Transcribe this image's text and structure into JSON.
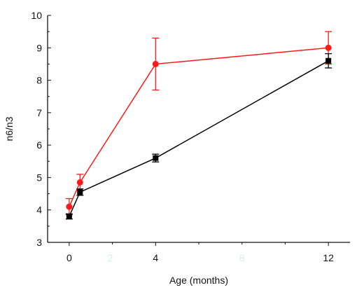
{
  "chart_data": {
    "type": "line",
    "xlabel": "Age (months)",
    "ylabel": "n6/n3",
    "x_ticks": [
      "0",
      "4",
      "12"
    ],
    "x_ticks_faint": [
      "2",
      "8"
    ],
    "y_ticks": [
      "3",
      "4",
      "5",
      "6",
      "7",
      "8",
      "9",
      "10"
    ],
    "xlim": [
      -1,
      13
    ],
    "ylim": [
      3,
      10
    ],
    "grid": false,
    "legend": "none",
    "series": [
      {
        "color": "#ff1a1a",
        "marker": "circle",
        "points": [
          {
            "x": 0,
            "y": 4.1,
            "err": 0.25
          },
          {
            "x": 0.5,
            "y": 4.85,
            "err": 0.25
          },
          {
            "x": 4,
            "y": 8.5,
            "err": 0.8
          },
          {
            "x": 12,
            "y": 9.0,
            "err": 0.5
          }
        ]
      },
      {
        "color": "#000000",
        "marker": "square",
        "points": [
          {
            "x": 0,
            "y": 3.8,
            "err": 0.08
          },
          {
            "x": 0.5,
            "y": 4.55,
            "err": 0.1
          },
          {
            "x": 4,
            "y": 5.6,
            "err": 0.12
          },
          {
            "x": 12,
            "y": 8.6,
            "err": 0.22
          }
        ]
      }
    ]
  }
}
